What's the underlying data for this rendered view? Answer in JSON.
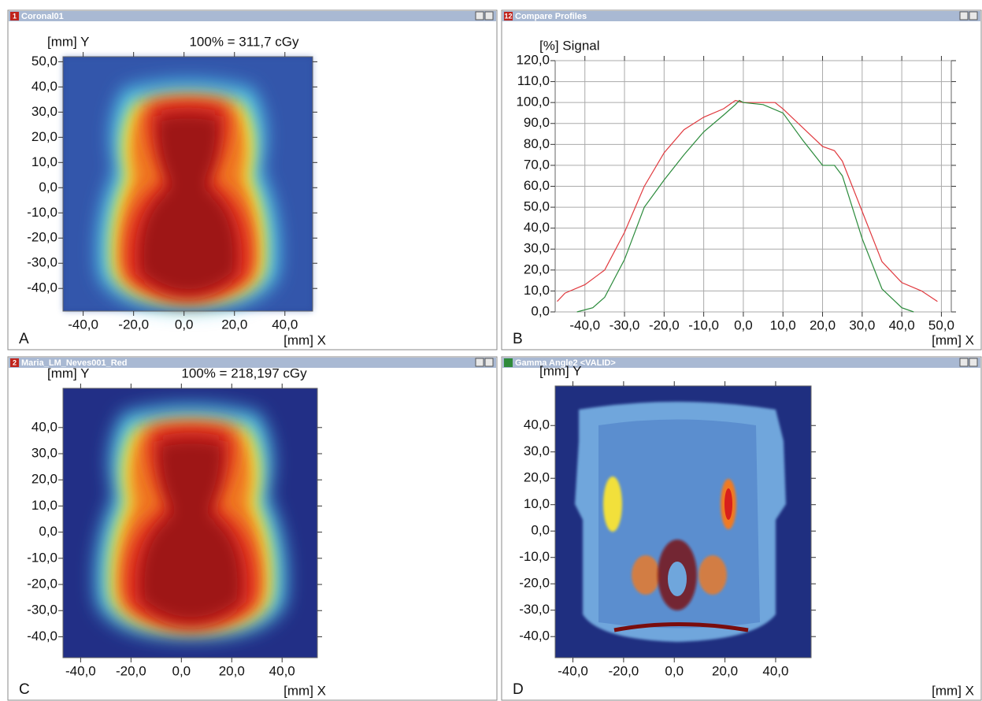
{
  "windows": [
    {
      "title": "Coronal01",
      "icon_text": "1",
      "panel_label": "A",
      "type": "dose-map",
      "y_axis_label": "[mm] Y",
      "x_axis_label": "[mm] X",
      "annotation": "100% = 311,7 cGy",
      "xlim": [
        -48,
        51
      ],
      "ylim": [
        -49,
        52
      ],
      "xticks": [
        {
          "value": -40,
          "label": "-40,0"
        },
        {
          "value": -20,
          "label": "-20,0"
        },
        {
          "value": 0,
          "label": "0,0"
        },
        {
          "value": 20,
          "label": "20,0"
        },
        {
          "value": 40,
          "label": "40,0"
        }
      ],
      "yticks": [
        {
          "value": 50,
          "label": "50,0"
        },
        {
          "value": 40,
          "label": "40,0"
        },
        {
          "value": 30,
          "label": "30,0"
        },
        {
          "value": 20,
          "label": "20,0"
        },
        {
          "value": 10,
          "label": "10,0"
        },
        {
          "value": 0,
          "label": "0,0"
        },
        {
          "value": -10,
          "label": "-10,0"
        },
        {
          "value": -20,
          "label": "-20,0"
        },
        {
          "value": -30,
          "label": "-30,0"
        },
        {
          "value": -40,
          "label": "-40,0"
        }
      ]
    },
    {
      "title": "Compare Profiles",
      "icon_text": "12",
      "panel_label": "B",
      "type": "line",
      "y_axis_label": "[%] Signal",
      "x_axis_label": "[mm] X",
      "grid": true,
      "xlim": [
        -47.5,
        52.5
      ],
      "ylim": [
        0,
        120
      ],
      "xticks": [
        {
          "value": -40,
          "label": "-40,0"
        },
        {
          "value": -30,
          "label": "-30,0"
        },
        {
          "value": -20,
          "label": "-20,0"
        },
        {
          "value": -10,
          "label": "-10,0"
        },
        {
          "value": 0,
          "label": "0,0"
        },
        {
          "value": 10,
          "label": "10,0"
        },
        {
          "value": 20,
          "label": "20,0"
        },
        {
          "value": 30,
          "label": "30,0"
        },
        {
          "value": 40,
          "label": "40,0"
        },
        {
          "value": 50,
          "label": "50,0"
        }
      ],
      "yticks": [
        {
          "value": 0,
          "label": "0,0"
        },
        {
          "value": 10,
          "label": "10,0"
        },
        {
          "value": 20,
          "label": "20,0"
        },
        {
          "value": 30,
          "label": "30,0"
        },
        {
          "value": 40,
          "label": "40,0"
        },
        {
          "value": 50,
          "label": "50,0"
        },
        {
          "value": 60,
          "label": "60,0"
        },
        {
          "value": 70,
          "label": "70,0"
        },
        {
          "value": 80,
          "label": "80,0"
        },
        {
          "value": 90,
          "label": "90,0"
        },
        {
          "value": 100,
          "label": "100,0"
        },
        {
          "value": 110,
          "label": "110,0"
        },
        {
          "value": 120,
          "label": "120,0"
        }
      ],
      "series": [
        {
          "color": "#e0393e",
          "x": [
            -47,
            -45,
            -40,
            -35,
            -30,
            -25,
            -20,
            -15,
            -10,
            -5,
            -2,
            0,
            5,
            8,
            10,
            15,
            20,
            23,
            25,
            30,
            35,
            40,
            45,
            49
          ],
          "values": [
            5,
            9,
            13,
            20,
            38,
            60,
            76,
            87,
            93,
            97,
            101,
            100,
            100,
            100,
            97,
            88,
            79,
            77,
            72,
            48,
            24,
            14,
            10,
            5
          ]
        },
        {
          "color": "#2a8a3a",
          "x": [
            -42,
            -38,
            -35,
            -30,
            -27,
            -25,
            -20,
            -15,
            -10,
            -5,
            -2,
            -1,
            0,
            5,
            10,
            15,
            20,
            23,
            25,
            30,
            35,
            40,
            43
          ],
          "values": [
            0,
            2,
            7,
            25,
            40,
            50,
            63,
            75,
            86,
            94,
            99,
            101,
            100,
            99,
            95,
            82,
            70,
            70,
            65,
            35,
            11,
            2,
            0
          ]
        }
      ]
    },
    {
      "title": "Maria_LM_Neves001_Red",
      "icon_text": "2",
      "panel_label": "C",
      "type": "dose-map",
      "y_axis_label": "[mm] Y",
      "x_axis_label": "[mm] X",
      "annotation": "100% = 218,197 cGy",
      "xlim": [
        -47,
        54
      ],
      "ylim": [
        -48,
        55
      ],
      "xticks": [
        {
          "value": -40,
          "label": "-40,0"
        },
        {
          "value": -20,
          "label": "-20,0"
        },
        {
          "value": 0,
          "label": "0,0"
        },
        {
          "value": 20,
          "label": "20,0"
        },
        {
          "value": 40,
          "label": "40,0"
        }
      ],
      "yticks": [
        {
          "value": 40,
          "label": "40,0"
        },
        {
          "value": 30,
          "label": "30,0"
        },
        {
          "value": 20,
          "label": "20,0"
        },
        {
          "value": 10,
          "label": "10,0"
        },
        {
          "value": 0,
          "label": "0,0"
        },
        {
          "value": -10,
          "label": "-10,0"
        },
        {
          "value": -20,
          "label": "-20,0"
        },
        {
          "value": -30,
          "label": "-30,0"
        },
        {
          "value": -40,
          "label": "-40,0"
        }
      ]
    },
    {
      "title": "Gamma Angle2 <VALID>",
      "panel_label": "D",
      "type": "dose-map",
      "y_axis_label": "[mm] Y",
      "x_axis_label": "[mm] X",
      "xlim": [
        -47,
        54
      ],
      "ylim": [
        -48,
        55
      ],
      "xticks": [
        {
          "value": -40,
          "label": "-40,0"
        },
        {
          "value": -20,
          "label": "-20,0"
        },
        {
          "value": 0,
          "label": "0,0"
        },
        {
          "value": 20,
          "label": "20,0"
        },
        {
          "value": 40,
          "label": "40,0"
        }
      ],
      "yticks": [
        {
          "value": 40,
          "label": "40,0"
        },
        {
          "value": 30,
          "label": "30,0"
        },
        {
          "value": 20,
          "label": "20,0"
        },
        {
          "value": 10,
          "label": "10,0"
        },
        {
          "value": 0,
          "label": "0,0"
        },
        {
          "value": -10,
          "label": "-10,0"
        },
        {
          "value": -20,
          "label": "-20,0"
        },
        {
          "value": -30,
          "label": "-30,0"
        },
        {
          "value": -40,
          "label": "-40,0"
        }
      ]
    }
  ]
}
